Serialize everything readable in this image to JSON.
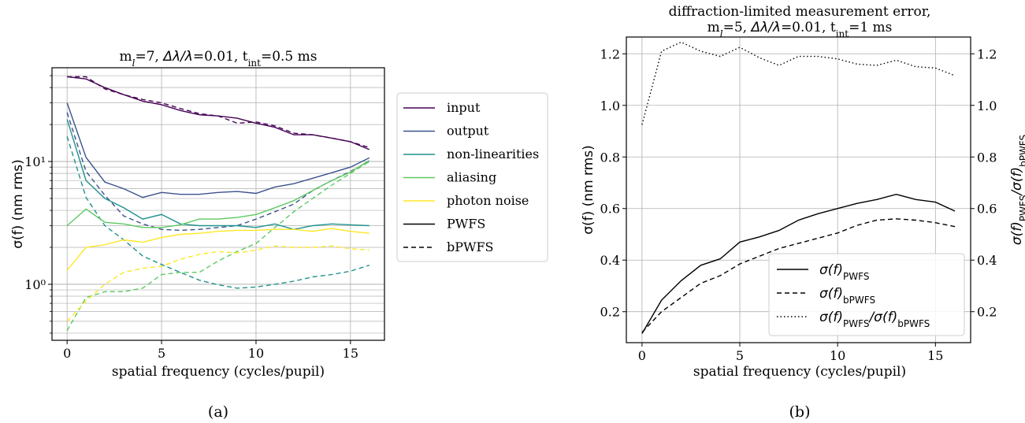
{
  "chart_data": [
    {
      "panel_caption": "(a)",
      "type": "line",
      "title_parts": [
        "m",
        "l",
        "=7, ",
        "Δλ/λ",
        "=0.01, t",
        "int",
        "=0.5 ms"
      ],
      "xlabel": "spatial frequency (cycles/pupil)",
      "ylabel": "σ(f) (nm rms)",
      "xlim": [
        -0.8,
        16.8
      ],
      "ylim": [
        0.35,
        58
      ],
      "yscale": "log",
      "grid": true,
      "x_ticks": [
        0,
        5,
        10,
        15
      ],
      "y_major_ticks": [
        1,
        10
      ],
      "y_major_tick_labels": [
        "10⁰",
        "10¹"
      ],
      "legend_position": "outside-right",
      "legend": [
        {
          "label": "input",
          "color": "#440154",
          "dash": "solid"
        },
        {
          "label": "output",
          "color": "#3b528b",
          "dash": "solid"
        },
        {
          "label": "non-linearities",
          "color": "#21918c",
          "dash": "solid"
        },
        {
          "label": "aliasing",
          "color": "#5ec962",
          "dash": "solid"
        },
        {
          "label": "photon noise",
          "color": "#fde725",
          "dash": "solid"
        },
        {
          "label": "PWFS",
          "color": "#000000",
          "dash": "solid"
        },
        {
          "label": "bPWFS",
          "color": "#000000",
          "dash": "dashed"
        }
      ],
      "x": [
        0,
        1,
        2,
        3,
        4,
        5,
        6,
        7,
        8,
        9,
        10,
        11,
        12,
        13,
        14,
        15,
        16
      ],
      "series": [
        {
          "name": "input",
          "sensor": "PWFS",
          "color": "#440154",
          "dash": "solid",
          "values": [
            49,
            47,
            40,
            35,
            31,
            29,
            26,
            24,
            23.5,
            22.5,
            20.5,
            19,
            16.5,
            16.5,
            15.5,
            14.5,
            12.5
          ]
        },
        {
          "name": "input",
          "sensor": "bPWFS",
          "color": "#440154",
          "dash": "dashed",
          "values": [
            49,
            49,
            39,
            35,
            32,
            30,
            27,
            24.5,
            23.5,
            20.5,
            21,
            19.5,
            17,
            16.5,
            15.5,
            14.5,
            13
          ]
        },
        {
          "name": "output",
          "sensor": "PWFS",
          "color": "#3b528b",
          "dash": "solid",
          "values": [
            30,
            10.8,
            6.8,
            6,
            5.1,
            5.6,
            5.4,
            5.4,
            5.6,
            5.7,
            5.5,
            6.2,
            6.6,
            7.3,
            8.1,
            9,
            10.7
          ]
        },
        {
          "name": "output",
          "sensor": "bPWFS",
          "color": "#3b528b",
          "dash": "dashed",
          "values": [
            25,
            8.3,
            5.3,
            3.6,
            3.1,
            2.8,
            2.75,
            2.8,
            2.9,
            3,
            3.4,
            3.9,
            4.5,
            5.8,
            7,
            8.3,
            10
          ]
        },
        {
          "name": "non-linearities",
          "sensor": "PWFS",
          "color": "#21918c",
          "dash": "solid",
          "values": [
            22,
            7,
            5,
            4.2,
            3.4,
            3.7,
            3.1,
            3,
            3,
            3,
            2.9,
            3.1,
            2.8,
            3,
            3.1,
            3.05,
            3
          ]
        },
        {
          "name": "non-linearities",
          "sensor": "bPWFS",
          "color": "#21918c",
          "dash": "dashed",
          "values": [
            16,
            5.1,
            3,
            2.3,
            1.7,
            1.45,
            1.25,
            1.08,
            0.99,
            0.93,
            0.95,
            1,
            1.06,
            1.15,
            1.2,
            1.28,
            1.43
          ]
        },
        {
          "name": "aliasing",
          "sensor": "PWFS",
          "color": "#5ec962",
          "dash": "solid",
          "values": [
            3,
            4.1,
            3.2,
            3.1,
            2.9,
            2.9,
            3.05,
            3.4,
            3.4,
            3.5,
            3.7,
            4.2,
            4.8,
            5.8,
            7,
            8.2,
            10.2
          ]
        },
        {
          "name": "aliasing",
          "sensor": "bPWFS",
          "color": "#5ec962",
          "dash": "dashed",
          "values": [
            0.42,
            0.78,
            0.87,
            0.87,
            0.93,
            1.2,
            1.25,
            1.25,
            1.55,
            1.85,
            2.15,
            2.9,
            3.9,
            5,
            6.4,
            8,
            10
          ]
        },
        {
          "name": "photon noise",
          "sensor": "PWFS",
          "color": "#fde725",
          "dash": "solid",
          "values": [
            1.3,
            2,
            2.1,
            2.3,
            2.2,
            2.4,
            2.55,
            2.6,
            2.7,
            2.75,
            2.75,
            2.8,
            2.8,
            2.7,
            2.85,
            2.7,
            2.6
          ]
        },
        {
          "name": "photon noise",
          "sensor": "bPWFS",
          "color": "#fde725",
          "dash": "dashed",
          "values": [
            0.5,
            0.73,
            1,
            1.25,
            1.35,
            1.4,
            1.6,
            1.75,
            1.85,
            1.8,
            1.9,
            2.05,
            2,
            2,
            2.05,
            1.95,
            1.9
          ]
        }
      ]
    },
    {
      "panel_caption": "(b)",
      "type": "line",
      "title_line1": "diffraction-limited measurement error,",
      "title_line2_parts": [
        "m",
        "l",
        "=5, ",
        "Δλ/λ",
        "=0.01, t",
        "int",
        "=1 ms"
      ],
      "xlabel": "spatial frequency (cycles/pupil)",
      "ylabel": "σ(f) (nm rms)",
      "ylabel_right": "σ(f)PWFS/σ(f)bPWFS",
      "xlim": [
        -0.8,
        16.8
      ],
      "ylim": [
        0.08,
        1.265
      ],
      "ylim_right": [
        0.08,
        1.265
      ],
      "grid": true,
      "x_ticks": [
        0,
        5,
        10,
        15
      ],
      "y_ticks": [
        0.2,
        0.4,
        0.6,
        0.8,
        1.0,
        1.2
      ],
      "y_tick_labels": [
        "0.2",
        "0.4",
        "0.6",
        "0.8",
        "1.0",
        "1.2"
      ],
      "legend_position": "lower-right",
      "legend": [
        {
          "label": "σ(f)PWFS",
          "dash": "solid"
        },
        {
          "label": "σ(f)bPWFS",
          "dash": "dashed"
        },
        {
          "label": "σ(f)PWFS/σ(f)bPWFS",
          "dash": "dotted"
        }
      ],
      "x": [
        0,
        1,
        2,
        3,
        4,
        5,
        6,
        7,
        8,
        9,
        10,
        11,
        12,
        13,
        14,
        15,
        16
      ],
      "series": [
        {
          "name": "σ(f)PWFS",
          "axis": "left",
          "color": "#000000",
          "dash": "solid",
          "values": [
            0.115,
            0.245,
            0.32,
            0.38,
            0.405,
            0.47,
            0.49,
            0.515,
            0.555,
            0.58,
            0.6,
            0.62,
            0.635,
            0.655,
            0.635,
            0.625,
            0.59
          ]
        },
        {
          "name": "σ(f)bPWFS",
          "axis": "left",
          "color": "#000000",
          "dash": "dashed",
          "values": [
            0.12,
            0.2,
            0.255,
            0.31,
            0.34,
            0.385,
            0.415,
            0.445,
            0.465,
            0.485,
            0.505,
            0.535,
            0.555,
            0.56,
            0.555,
            0.545,
            0.53
          ]
        },
        {
          "name": "σ(f)PWFS/σ(f)bPWFS",
          "axis": "right",
          "color": "#000000",
          "dash": "dotted",
          "values": [
            0.925,
            1.21,
            1.245,
            1.21,
            1.19,
            1.225,
            1.185,
            1.155,
            1.19,
            1.19,
            1.18,
            1.16,
            1.155,
            1.175,
            1.15,
            1.145,
            1.115
          ]
        }
      ]
    }
  ]
}
